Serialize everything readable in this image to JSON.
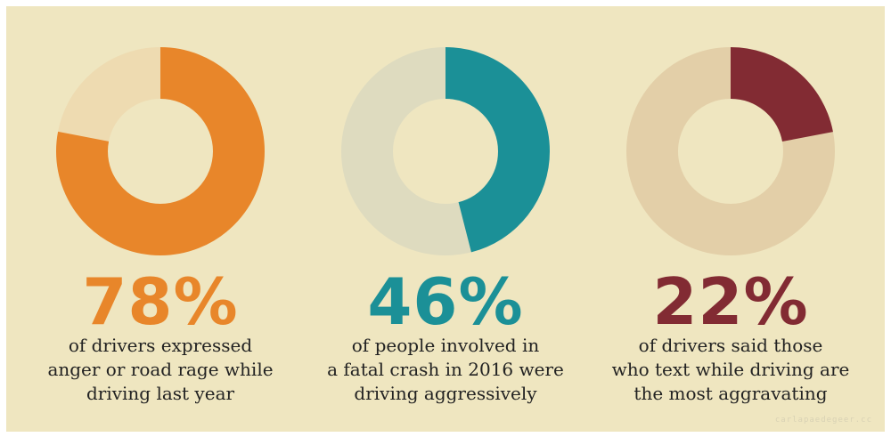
{
  "chart_data": [
    {
      "type": "pie",
      "variant": "donut",
      "value": 78,
      "value_label": "78%",
      "caption_lines": [
        "of drivers expressed",
        "anger or road rage while",
        "driving last year"
      ],
      "colors": {
        "fill": "#e8862a",
        "track": "#eedbb1",
        "label": "#e8862a"
      }
    },
    {
      "type": "pie",
      "variant": "donut",
      "value": 46,
      "value_label": "46%",
      "caption_lines": [
        "of people involved in",
        "a fatal crash in 2016 were",
        "driving aggressively"
      ],
      "colors": {
        "fill": "#1b9097",
        "track": "#dedbbf",
        "label": "#1b9097"
      }
    },
    {
      "type": "pie",
      "variant": "donut",
      "value": 22,
      "value_label": "22%",
      "caption_lines": [
        "of drivers said those",
        "who text while driving are",
        "the most aggravating"
      ],
      "colors": {
        "fill": "#822b33",
        "track": "#e3cfa8",
        "label": "#822b33"
      }
    }
  ],
  "colors": {
    "background": "#efe6c0"
  },
  "watermark": "carlapaedegeer.cc"
}
